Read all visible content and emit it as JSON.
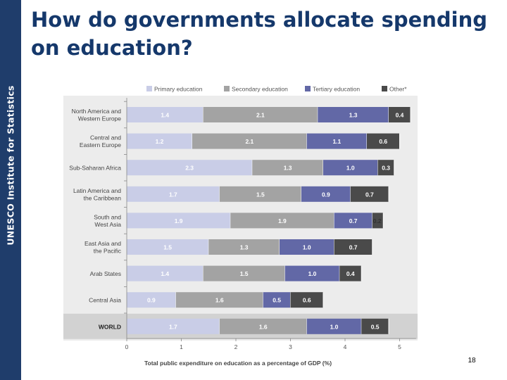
{
  "sidebar": {
    "label": "UNESCO Institute for Statistics"
  },
  "slide": {
    "title": "How do governments allocate spending on education?",
    "page_number": "18"
  },
  "colors": {
    "sidebar": "#1f3d6b",
    "title": "#15386b",
    "primary": "#c9cde7",
    "secondary": "#a3a3a3",
    "tertiary": "#6268a6",
    "other": "#4a4a4a",
    "plot_background": "#ececec",
    "world_band": "#d2d2d2"
  },
  "chart_data": {
    "type": "bar",
    "orientation": "horizontal",
    "stacked": true,
    "categories": [
      [
        "North America and",
        "Western Europe"
      ],
      [
        "Central and",
        "Eastern Europe"
      ],
      [
        "Sub-Saharan Africa"
      ],
      [
        "Latin America and",
        "the Caribbean"
      ],
      [
        "South and",
        "West Asia"
      ],
      [
        "East Asia and",
        "the Pacific"
      ],
      [
        "Arab States"
      ],
      [
        "Central Asia"
      ],
      [
        "WORLD"
      ]
    ],
    "highlight_category": 8,
    "series": [
      {
        "name": "Primary education",
        "values": [
          1.4,
          1.2,
          2.3,
          1.7,
          1.9,
          1.5,
          1.4,
          0.9,
          1.7
        ],
        "labels": [
          "1.4",
          "1.2",
          "2.3",
          "1.7",
          "1.9",
          "1.5",
          "1.4",
          "0.9",
          "1.7"
        ]
      },
      {
        "name": "Secondary education",
        "values": [
          2.1,
          2.1,
          1.3,
          1.5,
          1.9,
          1.3,
          1.5,
          1.6,
          1.6
        ],
        "labels": [
          "2.1",
          "2.1",
          "1.3",
          "1.5",
          "1.9",
          "1.3",
          "1.5",
          "1.6",
          "1.6"
        ]
      },
      {
        "name": "Tertiary education",
        "values": [
          1.3,
          1.1,
          1.0,
          0.9,
          0.7,
          1.0,
          1.0,
          0.5,
          1.0
        ],
        "labels": [
          "1.3",
          "1.1",
          "1.0",
          "0.9",
          "0.7",
          "1.0",
          "1.0",
          "0.5",
          "1.0"
        ]
      },
      {
        "name": "Other*",
        "values": [
          0.4,
          0.6,
          0.3,
          0.7,
          0.2,
          0.7,
          0.4,
          0.6,
          0.5
        ],
        "labels": [
          "0.4",
          "0.6",
          "0.3",
          "0.7",
          "0.2",
          "0.7",
          "0.4",
          "0.6",
          "0.5"
        ]
      }
    ],
    "xlabel": "Total public expenditure on education as a percentage of GDP (%)",
    "ylabel": "",
    "xlim": [
      0,
      5.3
    ],
    "xticks": [
      "0",
      "1",
      "2",
      "3",
      "4",
      "5"
    ],
    "legend_position": "top",
    "grid": false
  }
}
